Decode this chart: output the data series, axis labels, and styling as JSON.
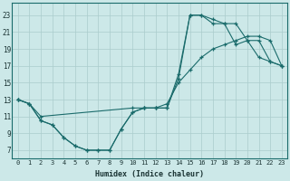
{
  "xlabel": "Humidex (Indice chaleur)",
  "xlim": [
    -0.5,
    23.5
  ],
  "ylim": [
    6,
    24.5
  ],
  "xticks": [
    0,
    1,
    2,
    3,
    4,
    5,
    6,
    7,
    8,
    9,
    10,
    11,
    12,
    13,
    14,
    15,
    16,
    17,
    18,
    19,
    20,
    21,
    22,
    23
  ],
  "yticks": [
    7,
    9,
    11,
    13,
    15,
    17,
    19,
    21,
    23
  ],
  "bg_color": "#cce8e8",
  "grid_color": "#aacccc",
  "line_color": "#1a6b6b",
  "line1_x": [
    0,
    1,
    2,
    3,
    4,
    5,
    6,
    7,
    8,
    9,
    10,
    11,
    12,
    13,
    14,
    15,
    16,
    17,
    18,
    19,
    20,
    21,
    22,
    23
  ],
  "line1_y": [
    13,
    12.5,
    10.5,
    10,
    8.5,
    7.5,
    7,
    7,
    7,
    9.5,
    11.5,
    12,
    12,
    12,
    16,
    23,
    23,
    22.5,
    22,
    22,
    20,
    18,
    17.5,
    17
  ],
  "line2_x": [
    0,
    1,
    2,
    10,
    11,
    12,
    13,
    14,
    15,
    16,
    17,
    18,
    19,
    20,
    21,
    22,
    23
  ],
  "line2_y": [
    13,
    12.5,
    11,
    12,
    12,
    12,
    12.5,
    15,
    16.5,
    18,
    19,
    19.5,
    20,
    20.5,
    20.5,
    20,
    17
  ],
  "line3_x": [
    0,
    1,
    2,
    3,
    4,
    5,
    6,
    7,
    8,
    9,
    10,
    11,
    12,
    13,
    14,
    15,
    16,
    17,
    18,
    19,
    20,
    21,
    22,
    23
  ],
  "line3_y": [
    13,
    12.5,
    10.5,
    10,
    8.5,
    7.5,
    7,
    7,
    7,
    9.5,
    11.5,
    12,
    12,
    12,
    15.5,
    23,
    23,
    22,
    22,
    19.5,
    20,
    20,
    17.5,
    17
  ]
}
